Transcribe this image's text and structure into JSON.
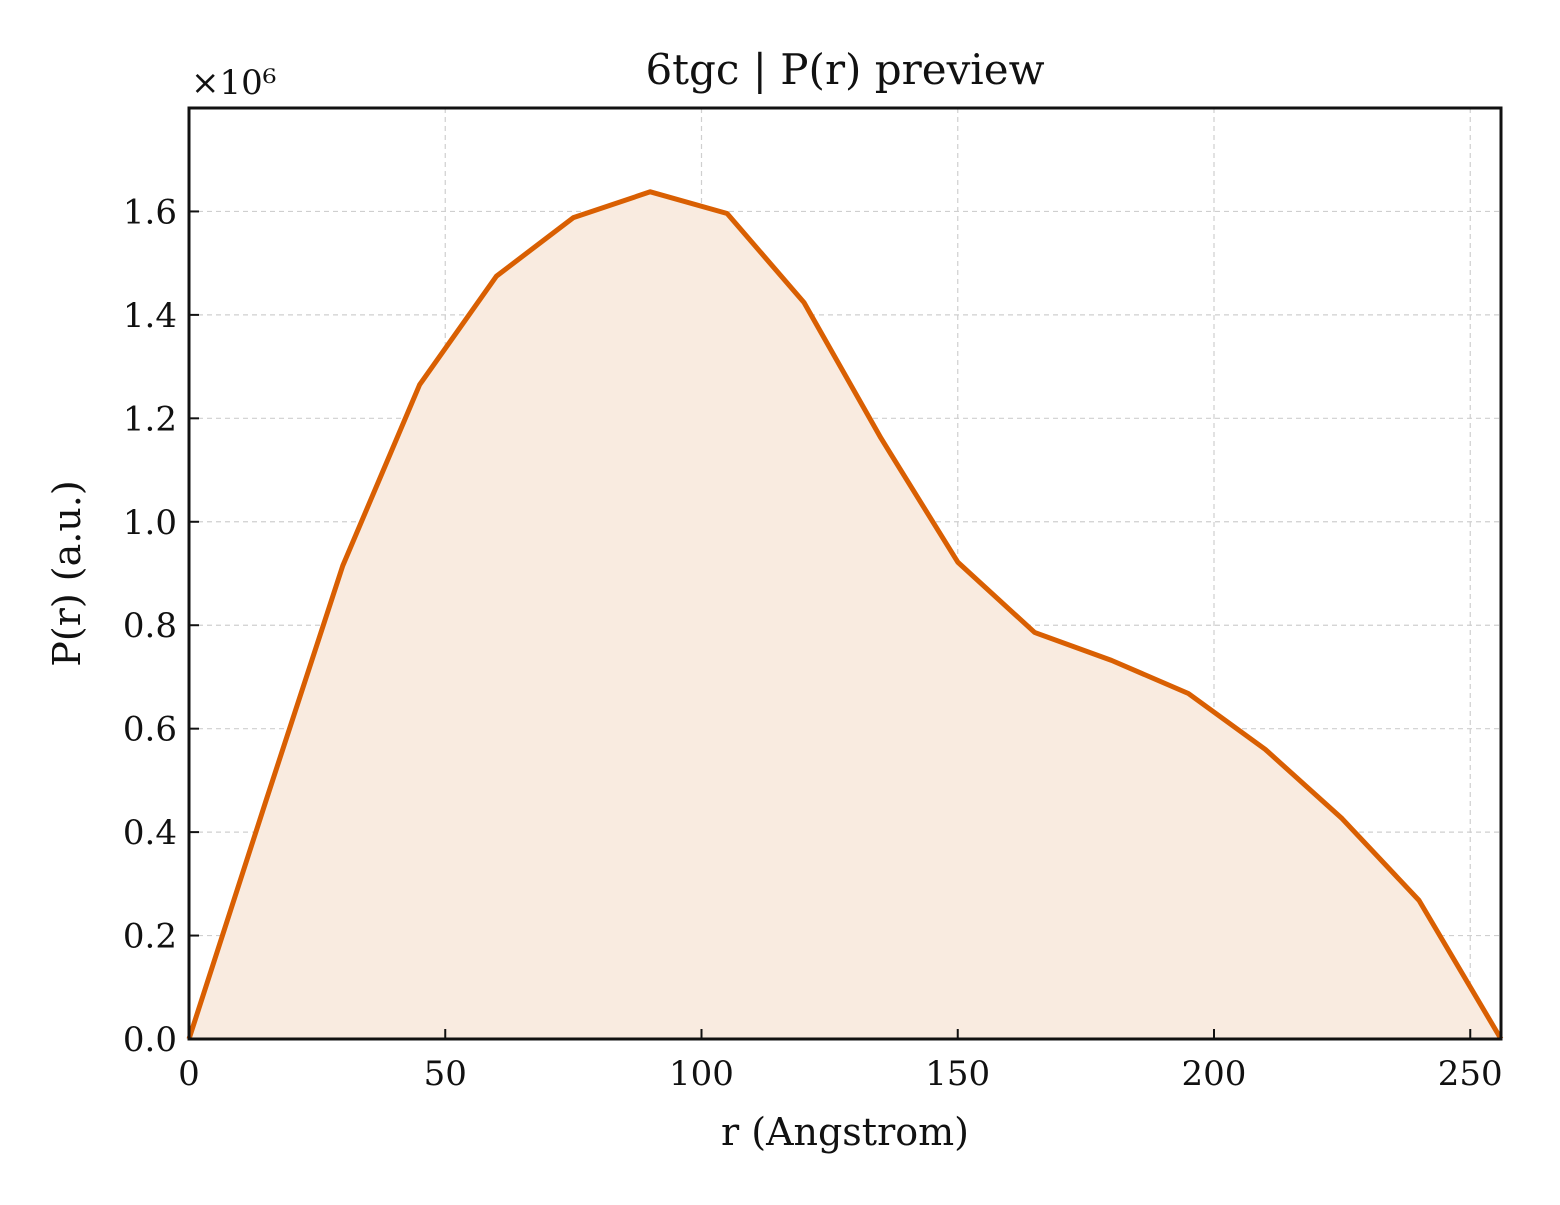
{
  "chart_data": {
    "type": "area",
    "title": "6tgc | P(r) preview",
    "xlabel": "r (Angstrom)",
    "ylabel": "P(r) (a.u.)",
    "y_offset_label": "×10⁶",
    "y_scale": 1000000,
    "xlim": [
      0,
      256
    ],
    "ylim": [
      0,
      1800000
    ],
    "xticks": [
      0,
      50,
      100,
      150,
      200,
      250
    ],
    "xtick_labels": [
      "0",
      "50",
      "100",
      "150",
      "200",
      "250"
    ],
    "yticks": [
      0,
      200000,
      400000,
      600000,
      800000,
      1000000,
      1200000,
      1400000,
      1600000
    ],
    "ytick_labels": [
      "0.0",
      "0.2",
      "0.4",
      "0.6",
      "0.8",
      "1.0",
      "1.2",
      "1.4",
      "1.6"
    ],
    "grid": true,
    "line_color": "#d95f02",
    "fill_color": "#f9ebe0",
    "series": [
      {
        "x": [
          0,
          15,
          30,
          45,
          60,
          75,
          90,
          105,
          120,
          135,
          150,
          165,
          180,
          195,
          210,
          225,
          240,
          256
        ],
        "y": [
          0,
          460000,
          915000,
          1265000,
          1475000,
          1588000,
          1638000,
          1596000,
          1424000,
          1162000,
          922000,
          786000,
          732000,
          668000,
          560000,
          426000,
          268000,
          0
        ]
      }
    ]
  }
}
